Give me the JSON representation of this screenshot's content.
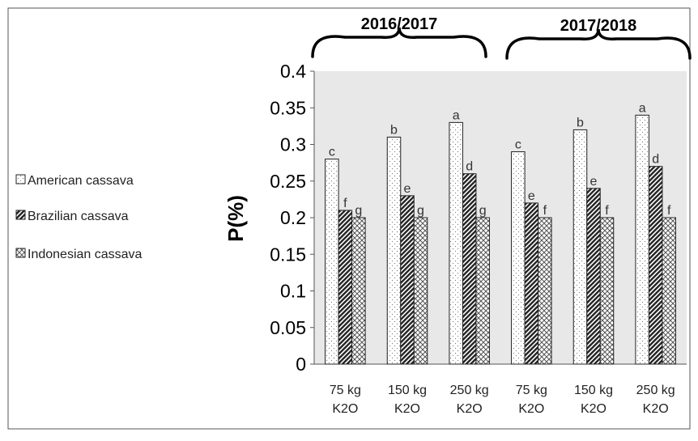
{
  "chart_data": {
    "type": "bar",
    "ylabel": "P(%)",
    "ylim": [
      0,
      0.4
    ],
    "y_ticks": [
      "0",
      "0.05",
      "0.1",
      "0.15",
      "0.2",
      "0.25",
      "0.3",
      "0.35",
      "0.4"
    ],
    "y_tick_values": [
      0,
      0.05,
      0.1,
      0.15,
      0.2,
      0.25,
      0.3,
      0.35,
      0.4
    ],
    "categories": [
      [
        "75 kg",
        "K2O"
      ],
      [
        "150 kg",
        "K2O"
      ],
      [
        "250 kg",
        "K2O"
      ],
      [
        "75 kg",
        "K2O"
      ],
      [
        "150 kg",
        "K2O"
      ],
      [
        "250 kg",
        "K2O"
      ]
    ],
    "groups": [
      {
        "label": "2016/2017",
        "categories": [
          0,
          1,
          2
        ]
      },
      {
        "label": "2017/2018",
        "categories": [
          3,
          4,
          5
        ]
      }
    ],
    "series": [
      {
        "name": "American cassava",
        "pattern": "dots",
        "values": [
          0.28,
          0.31,
          0.33,
          0.29,
          0.32,
          0.34
        ],
        "labels": [
          "c",
          "b",
          "a",
          "c",
          "b",
          "a"
        ]
      },
      {
        "name": "Brazilian cassava",
        "pattern": "diagonal",
        "values": [
          0.21,
          0.23,
          0.26,
          0.22,
          0.24,
          0.27
        ],
        "labels": [
          "f",
          "e",
          "d",
          "e",
          "e",
          "d"
        ]
      },
      {
        "name": "Indonesian cassava",
        "pattern": "crosshatch",
        "values": [
          0.2,
          0.2,
          0.2,
          0.2,
          0.2,
          0.2
        ],
        "labels": [
          "g",
          "g",
          "g",
          "f",
          "f",
          "f"
        ]
      }
    ],
    "legend_position": "left",
    "grid": false,
    "plot_background": "#e8e8e8"
  }
}
